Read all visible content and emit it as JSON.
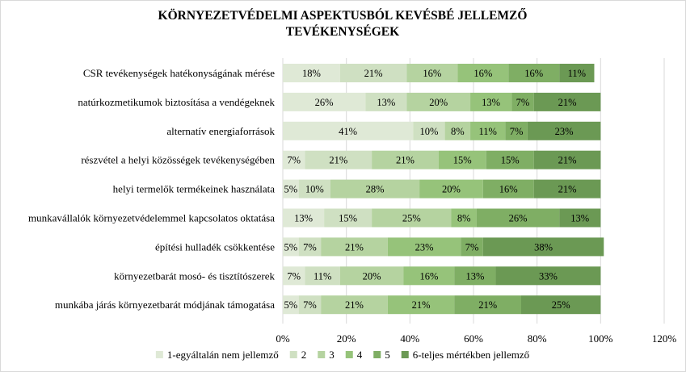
{
  "chart_data": {
    "type": "bar",
    "orientation": "horizontal",
    "stacked": true,
    "title_lines": [
      "KÖRNYEZETVÉDELMI ASPEKTUSBÓL KEVÉSBÉ JELLEMZŐ",
      "TEVÉKENYSÉGEK"
    ],
    "categories": [
      "CSR tevékenységek hatékonyságának mérése",
      "natúrkozmetikumok biztosítása a vendégeknek",
      "alternatív energiaforrások",
      "részvétel a helyi közösségek tevékenységében",
      "helyi termelők termékeinek használata",
      "munkavállalók környezetvédelemmel kapcsolatos oktatása",
      "építési hulladék csökkentése",
      "környezetbarát mosó- és tisztítószerek",
      "munkába járás környezetbarát módjának támogatása"
    ],
    "series": [
      {
        "name": "1-egyáltalán nem jellemző",
        "color": "#dfe9d6",
        "values": [
          18,
          26,
          41,
          7,
          5,
          13,
          5,
          7,
          5
        ]
      },
      {
        "name": "2",
        "color": "#cfe0c2",
        "values": [
          21,
          13,
          10,
          21,
          10,
          15,
          7,
          11,
          7
        ]
      },
      {
        "name": "3",
        "color": "#b5d3a0",
        "values": [
          16,
          20,
          8,
          21,
          28,
          25,
          21,
          20,
          21
        ]
      },
      {
        "name": "4",
        "color": "#96c37a",
        "values": [
          16,
          13,
          11,
          15,
          20,
          8,
          23,
          16,
          21
        ]
      },
      {
        "name": "5",
        "color": "#7fae64",
        "values": [
          16,
          7,
          7,
          15,
          16,
          26,
          7,
          13,
          21
        ]
      },
      {
        "name": "6-teljes mértékben jellemző",
        "color": "#6b9954",
        "values": [
          11,
          21,
          23,
          21,
          21,
          13,
          38,
          33,
          25
        ]
      }
    ],
    "data_labels": [
      [
        "18%",
        "21%",
        "16%",
        "16%",
        "16%",
        "11%"
      ],
      [
        "26%",
        "13%",
        "20%",
        "13%",
        "7%",
        "21%"
      ],
      [
        "41%",
        "10%",
        "8%",
        "11%",
        "7%",
        "23%"
      ],
      [
        "7%",
        "21%",
        "21%",
        "15%",
        "15%",
        "21%"
      ],
      [
        "5%",
        "10%",
        "28%",
        "20%",
        "16%",
        "21%"
      ],
      [
        "13%",
        "15%",
        "25%",
        "8%",
        "26%",
        "13%"
      ],
      [
        "5%",
        "7%",
        "21%",
        "23%",
        "7%",
        "38%"
      ],
      [
        "7%",
        "11%",
        "20%",
        "16%",
        "13%",
        "33%"
      ],
      [
        "5%",
        "7%",
        "21%",
        "21%",
        "21%",
        "25%"
      ]
    ],
    "xlim": [
      0,
      120
    ],
    "xticks": [
      0,
      20,
      40,
      60,
      80,
      100,
      120
    ],
    "xtick_labels": [
      "0%",
      "20%",
      "40%",
      "60%",
      "80%",
      "100%",
      "120%"
    ],
    "grid": true,
    "legend_position": "bottom"
  }
}
